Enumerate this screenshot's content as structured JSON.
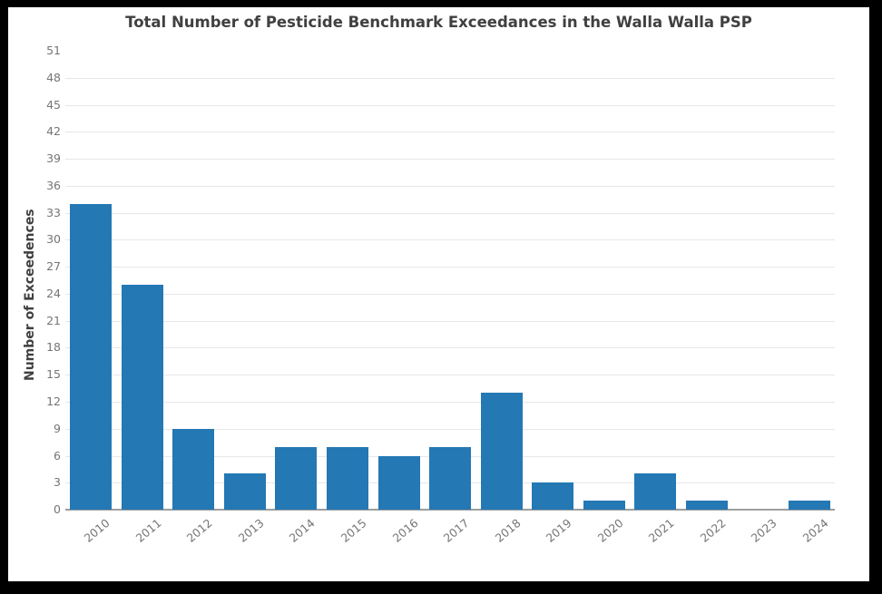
{
  "window": {
    "frame_border_color": "#000000",
    "background_color": "#ffffff"
  },
  "chart_data": {
    "type": "bar",
    "title": "Total Number of Pesticide Benchmark Exceedances in the Walla Walla PSP",
    "xlabel": "",
    "ylabel": "Number of Exceedences",
    "categories": [
      "2010",
      "2011",
      "2012",
      "2013",
      "2014",
      "2015",
      "2016",
      "2017",
      "2018",
      "2019",
      "2020",
      "2021",
      "2022",
      "2023",
      "2024"
    ],
    "values": [
      34,
      25,
      9,
      4,
      7,
      7,
      6,
      7,
      13,
      3,
      1,
      4,
      1,
      0,
      1
    ],
    "ylim": [
      0,
      51
    ],
    "yticks": [
      0,
      3,
      6,
      9,
      12,
      15,
      18,
      21,
      24,
      27,
      30,
      33,
      36,
      39,
      42,
      45,
      48,
      51
    ],
    "grid": true,
    "legend": "none",
    "bar_color": "#2478b4",
    "gridline_color": "#e7e7e7",
    "axis_line_color": "#9e9e9e",
    "tick_label_color": "#757575",
    "title_color": "#404040"
  }
}
